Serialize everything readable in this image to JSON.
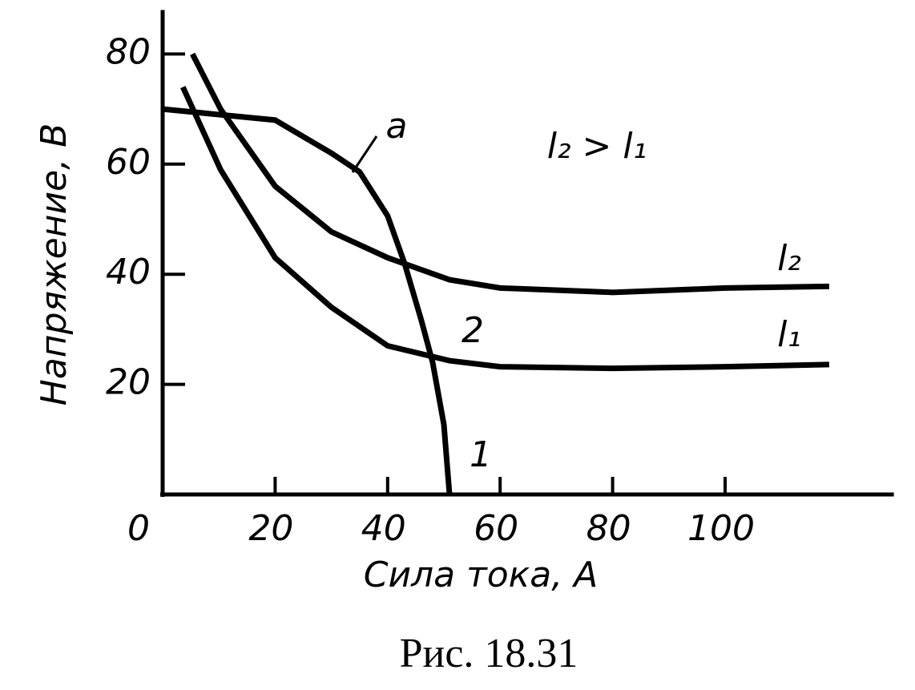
{
  "chart_data": {
    "type": "line",
    "xlabel": "Сила тока, А",
    "ylabel": "Напряжение, В",
    "caption": "Рис. 18.31",
    "xlim": [
      0,
      130
    ],
    "ylim": [
      0,
      88
    ],
    "xticks": [
      0,
      20,
      40,
      60,
      80,
      100
    ],
    "yticks": [
      20,
      40,
      60,
      80
    ],
    "annotations": [
      "l₂ > l₁",
      "2",
      "1"
    ],
    "series": [
      {
        "name": "a",
        "color": "#000000",
        "x": [
          0,
          10,
          20,
          30,
          35,
          40,
          43,
          46,
          48,
          50,
          51
        ],
        "values": [
          70,
          69,
          68,
          62,
          58.6,
          50.6,
          42,
          31.6,
          24,
          12.7,
          0
        ]
      },
      {
        "name": "l₂",
        "color": "#000000",
        "x": [
          5.3,
          10.3,
          20,
          30,
          40,
          51,
          60,
          80,
          100,
          118.5
        ],
        "values": [
          80,
          70,
          56,
          47.7,
          43,
          39,
          37.5,
          36.7,
          37.5,
          37.8
        ]
      },
      {
        "name": "l₁",
        "color": "#000000",
        "x": [
          3.6,
          10.3,
          20,
          30,
          40,
          51,
          60,
          80,
          100,
          118.5
        ],
        "values": [
          74,
          59,
          43,
          34,
          27,
          24.3,
          23.2,
          22.9,
          23.2,
          23.6
        ]
      }
    ]
  }
}
